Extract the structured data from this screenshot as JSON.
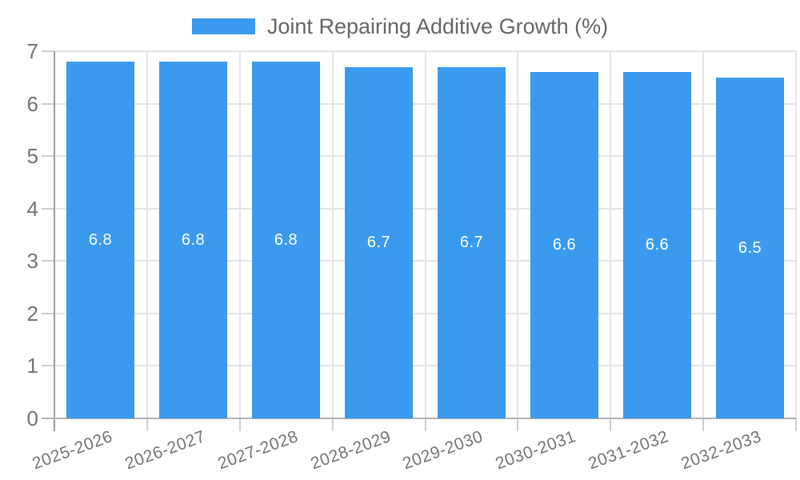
{
  "chart_data": {
    "type": "bar",
    "title": "Joint Repairing Additive Growth (%)",
    "categories": [
      "2025-2026",
      "2026-2027",
      "2027-2028",
      "2028-2029",
      "2029-2030",
      "2030-2031",
      "2031-2032",
      "2032-2033"
    ],
    "values": [
      6.8,
      6.8,
      6.8,
      6.7,
      6.7,
      6.6,
      6.6,
      6.5
    ],
    "value_labels": [
      "6.8",
      "6.8",
      "6.8",
      "6.7",
      "6.7",
      "6.6",
      "6.6",
      "6.5"
    ],
    "yticks": [
      "0",
      "1",
      "2",
      "3",
      "4",
      "5",
      "6",
      "7"
    ],
    "ylim": [
      0,
      7
    ],
    "xlabel": "",
    "ylabel": "",
    "grid": true,
    "legend_position": "top",
    "colors": {
      "bar": "#3a9aed",
      "gridline": "#e6e6e6",
      "tick_mark": "#cfcfcf",
      "y_axis_line": "#9e9e9e",
      "x_axis_line": "#b2b2b2",
      "tick_text": "#757575",
      "legend_text": "#666666",
      "bar_label_text": "#ffffff",
      "background": "#ffffff"
    }
  }
}
